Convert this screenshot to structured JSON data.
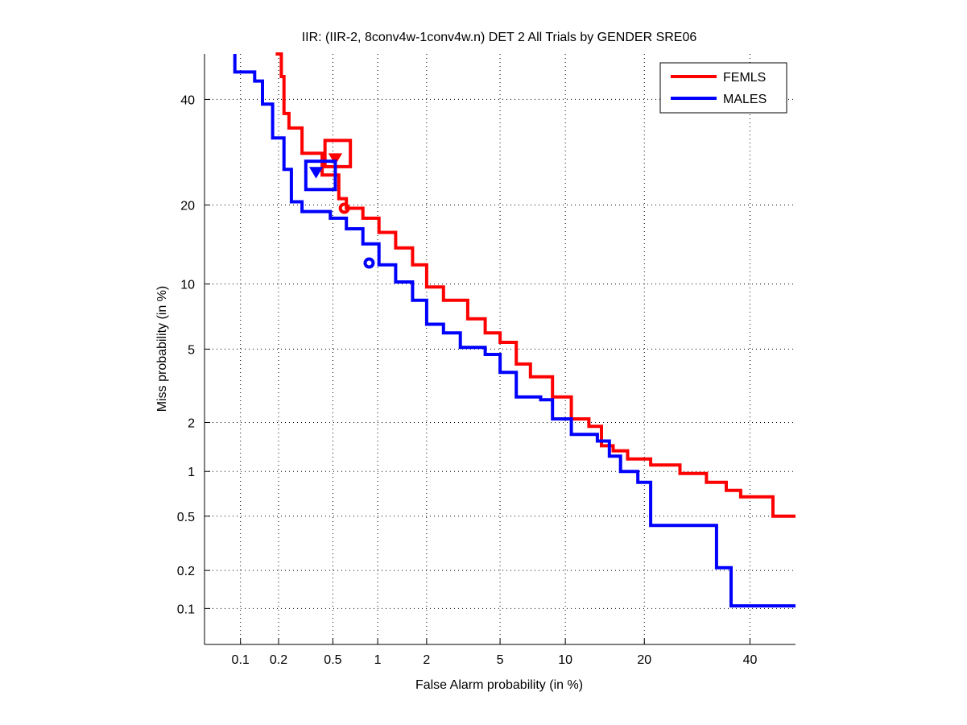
{
  "chart_data": {
    "type": "line",
    "title": "IIR: (IIR-2, 8conv4w-1conv4w.n) DET 2 All Trials by GENDER SRE06",
    "xlabel": "False Alarm probability (in %)",
    "ylabel": "Miss probability (in %)",
    "scale": "probit (normal deviate)",
    "xlim": [
      0.05,
      50
    ],
    "ylim": [
      0.05,
      50
    ],
    "xticks": [
      0.1,
      0.2,
      0.5,
      1,
      2,
      5,
      10,
      20,
      40
    ],
    "xtick_labels": [
      "0.1",
      "0.2",
      "0.5",
      "1",
      "2",
      "5",
      "10",
      "20",
      "40"
    ],
    "yticks": [
      0.1,
      0.2,
      0.5,
      1,
      2,
      5,
      10,
      20,
      40
    ],
    "ytick_labels": [
      "0.1",
      "0.2",
      "0.5",
      "1",
      "2",
      "5",
      "10",
      "20",
      "40"
    ],
    "grid": true,
    "legend_position": "top-right",
    "series": [
      {
        "name": "FEMLS",
        "color": "#ff0000",
        "points": [
          [
            0.19,
            50
          ],
          [
            0.21,
            45
          ],
          [
            0.22,
            37
          ],
          [
            0.24,
            34
          ],
          [
            0.3,
            29
          ],
          [
            0.42,
            25
          ],
          [
            0.55,
            21
          ],
          [
            0.62,
            19.5
          ],
          [
            0.8,
            18
          ],
          [
            1.02,
            16
          ],
          [
            1.3,
            14
          ],
          [
            1.65,
            12
          ],
          [
            2,
            9.7
          ],
          [
            2.5,
            8.5
          ],
          [
            3.4,
            7
          ],
          [
            4.2,
            6
          ],
          [
            5,
            5.4
          ],
          [
            6,
            4.2
          ],
          [
            7,
            3.6
          ],
          [
            8.8,
            2.8
          ],
          [
            10.6,
            2.1
          ],
          [
            12.5,
            1.9
          ],
          [
            14,
            1.45
          ],
          [
            15.5,
            1.35
          ],
          [
            17.5,
            1.2
          ],
          [
            21,
            1.1
          ],
          [
            26,
            0.97
          ],
          [
            31,
            0.85
          ],
          [
            35,
            0.75
          ],
          [
            38,
            0.68
          ],
          [
            45,
            0.58
          ],
          [
            45,
            0.5
          ],
          [
            50,
            0.5
          ]
        ],
        "min_dcf_point": [
          0.6,
          19.5
        ],
        "actual_dcf_point": [
          0.52,
          28
        ],
        "confidence_box": {
          "fa": [
            0.44,
            0.66
          ],
          "miss": [
            26.5,
            31.5
          ]
        }
      },
      {
        "name": "MALES",
        "color": "#0000ff",
        "points": [
          [
            0.09,
            50
          ],
          [
            0.09,
            46
          ],
          [
            0.13,
            44
          ],
          [
            0.15,
            39
          ],
          [
            0.18,
            32
          ],
          [
            0.22,
            26
          ],
          [
            0.25,
            20.5
          ],
          [
            0.3,
            19
          ],
          [
            0.48,
            18
          ],
          [
            0.62,
            16.5
          ],
          [
            0.8,
            14.5
          ],
          [
            1.02,
            12
          ],
          [
            1.3,
            10.2
          ],
          [
            1.65,
            8.5
          ],
          [
            2,
            6.6
          ],
          [
            2.5,
            6
          ],
          [
            3.1,
            5.1
          ],
          [
            4.2,
            4.7
          ],
          [
            5,
            3.8
          ],
          [
            6,
            2.8
          ],
          [
            7.8,
            2.7
          ],
          [
            8.8,
            2.1
          ],
          [
            10.6,
            1.7
          ],
          [
            13.5,
            1.55
          ],
          [
            15,
            1.25
          ],
          [
            16.5,
            1.0
          ],
          [
            19,
            0.85
          ],
          [
            21,
            0.62
          ],
          [
            21,
            0.43
          ],
          [
            32,
            0.43
          ],
          [
            33,
            0.28
          ],
          [
            33,
            0.21
          ],
          [
            36,
            0.21
          ],
          [
            36,
            0.105
          ],
          [
            50,
            0.105
          ]
        ],
        "min_dcf_point": [
          0.88,
          12.2
        ],
        "actual_dcf_point": [
          0.38,
          25.5
        ],
        "confidence_box": {
          "fa": [
            0.32,
            0.52
          ],
          "miss": [
            22.5,
            27.5
          ]
        }
      }
    ]
  }
}
